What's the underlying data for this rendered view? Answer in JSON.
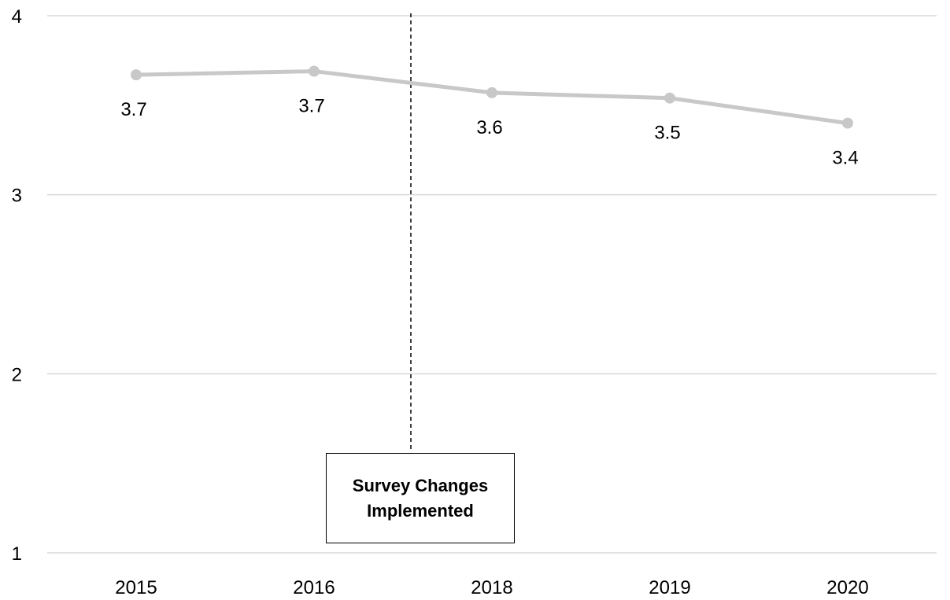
{
  "chart_data": {
    "type": "line",
    "categories": [
      "2015",
      "2016",
      "2018",
      "2019",
      "2020"
    ],
    "series": [
      {
        "values": [
          3.67,
          3.69,
          3.57,
          3.54,
          3.4
        ]
      }
    ],
    "data_labels": [
      "3.7",
      "3.7",
      "3.6",
      "3.5",
      "3.4"
    ],
    "ylim": [
      1,
      4
    ],
    "yticks": [
      "1",
      "2",
      "3",
      "4"
    ],
    "grid": true,
    "line_color": "#c8c8c8",
    "annotation": {
      "text": "Survey Changes\nImplemented",
      "between": [
        "2016",
        "2018"
      ],
      "line_style": "dashed"
    }
  }
}
